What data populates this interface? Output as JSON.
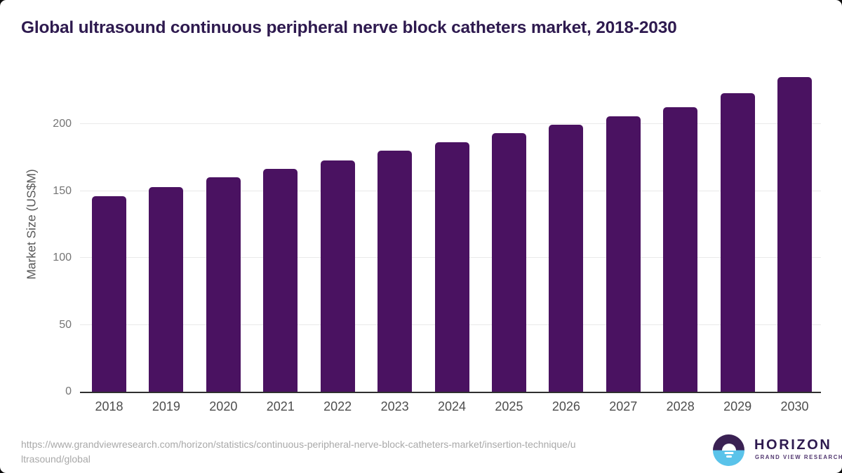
{
  "title": "Global ultrasound continuous peripheral nerve block catheters market, 2018-2030",
  "chart_data": {
    "type": "bar",
    "title": "Global ultrasound continuous peripheral nerve block catheters market, 2018-2030",
    "categories": [
      "2018",
      "2019",
      "2020",
      "2021",
      "2022",
      "2023",
      "2024",
      "2025",
      "2026",
      "2027",
      "2028",
      "2029",
      "2030"
    ],
    "values": [
      146,
      153,
      160,
      166.5,
      173,
      180,
      186.5,
      193,
      199.5,
      206,
      212.5,
      223,
      235
    ],
    "xlabel": "",
    "ylabel": "Market Size (US$M)",
    "ylim": [
      0,
      245
    ],
    "yticks": [
      0,
      50,
      100,
      150,
      200
    ],
    "grid": true,
    "legend": false,
    "bar_color": "#4a1261"
  },
  "footer": {
    "source_url_line1": "https://www.grandviewresearch.com/horizon/statistics/continuous-peripheral-nerve-block-catheters-market/insertion-technique/u",
    "source_url_line2": "ltrasound/global",
    "logo": {
      "brand": "HORIZON",
      "sub_brand": "GRAND VIEW RESEARCH",
      "icon": "horizon-sunset-icon",
      "icon_top_color": "#3a2153",
      "icon_bottom_color": "#5ac3ea"
    }
  },
  "colors": {
    "title_text": "#2e1a4f",
    "bar": "#4a1261",
    "axis_line": "#2f2f2f",
    "gridline": "#e9e9e9",
    "tick_text": "#757575",
    "axis_title_text": "#595959",
    "url_text": "#a9a9a9",
    "background": "#ffffff"
  }
}
